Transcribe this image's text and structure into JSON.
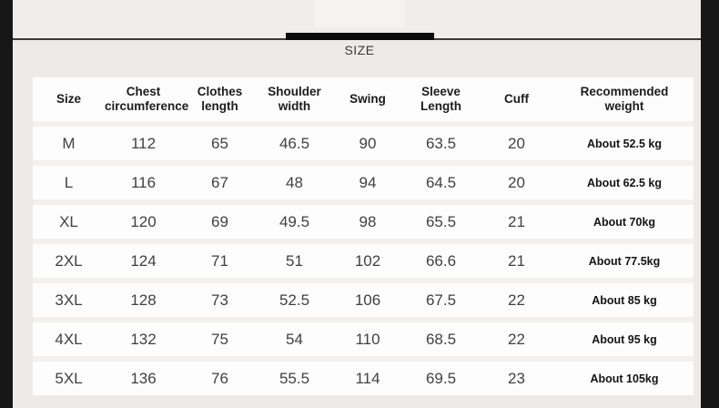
{
  "tab_bar": {
    "active_tab": "SIZE"
  },
  "size_chart": {
    "columns": [
      "Size",
      "Chest\ncircumference",
      "Clothes\nlength",
      "Shoulder\nwidth",
      "Swing",
      "Sleeve\nLength",
      "Cuff",
      "Recommended\nweight"
    ],
    "rows": [
      [
        "M",
        "112",
        "65",
        "46.5",
        "90",
        "63.5",
        "20",
        "About 52.5 kg"
      ],
      [
        "L",
        "116",
        "67",
        "48",
        "94",
        "64.5",
        "20",
        "About 62.5 kg"
      ],
      [
        "XL",
        "120",
        "69",
        "49.5",
        "98",
        "65.5",
        "21",
        "About 70kg"
      ],
      [
        "2XL",
        "124",
        "71",
        "51",
        "102",
        "66.6",
        "21",
        "About 77.5kg"
      ],
      [
        "3XL",
        "128",
        "73",
        "52.5",
        "106",
        "67.5",
        "22",
        "About 85 kg"
      ],
      [
        "4XL",
        "132",
        "75",
        "54",
        "110",
        "68.5",
        "22",
        "About 95 kg"
      ],
      [
        "5XL",
        "136",
        "76",
        "55.5",
        "114",
        "69.5",
        "23",
        "About 105kg"
      ]
    ]
  },
  "colors": {
    "tab_indicator": "#0c0c0c",
    "side_frame": "#171717",
    "table_background": "#fdfdfd",
    "page_background": "#ecebea",
    "divider": "#3c3c3c"
  }
}
